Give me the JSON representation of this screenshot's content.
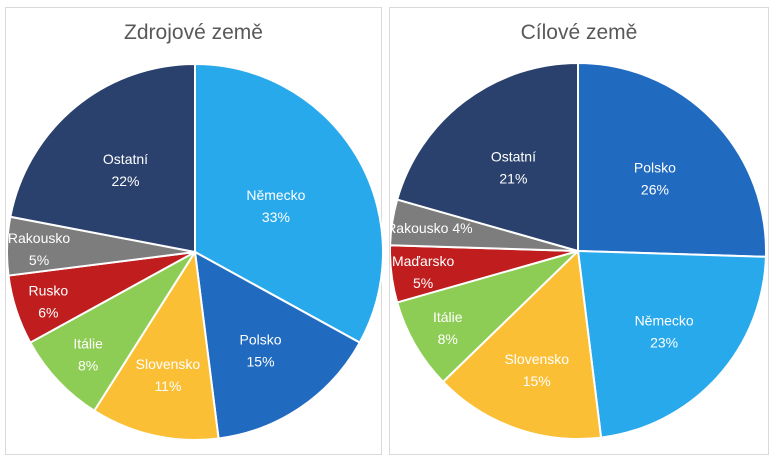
{
  "chart_data": [
    {
      "type": "pie",
      "title": "Zdrojové země",
      "start_angle_deg": 0,
      "slices": [
        {
          "label": "Německo",
          "value": 33,
          "value_text": "33%",
          "color": "#27A9EC"
        },
        {
          "label": "Polsko",
          "value": 15,
          "value_text": "15%",
          "color": "#206AC0"
        },
        {
          "label": "Slovensko",
          "value": 11,
          "value_text": "11%",
          "color": "#FBBF35"
        },
        {
          "label": "Itálie",
          "value": 8,
          "value_text": "8%",
          "color": "#8ECD55"
        },
        {
          "label": "Rusko",
          "value": 6,
          "value_text": "6%",
          "color": "#C01E1E"
        },
        {
          "label": "Rakousko",
          "value": 5,
          "value_text": "5%",
          "color": "#7D7D7D"
        },
        {
          "label": "Ostatní",
          "value": 22,
          "value_text": "22%",
          "color": "#2B416D"
        }
      ]
    },
    {
      "type": "pie",
      "title": "Cílové země",
      "start_angle_deg": 0,
      "slices": [
        {
          "label": "Polsko",
          "value": 26,
          "value_text": "26%",
          "color": "#206AC0"
        },
        {
          "label": "Německo",
          "value": 23,
          "value_text": "23%",
          "color": "#27A9EC"
        },
        {
          "label": "Slovensko",
          "value": 15,
          "value_text": "15%",
          "color": "#FBBF35"
        },
        {
          "label": "Itálie",
          "value": 8,
          "value_text": "8%",
          "color": "#8ECD55"
        },
        {
          "label": "Maďarsko",
          "value": 5,
          "value_text": "5%",
          "color": "#C01E1E"
        },
        {
          "label": "Rakousko",
          "value": 4,
          "value_text": "4%",
          "color": "#7D7D7D"
        },
        {
          "label": "Ostatní",
          "value": 21,
          "value_text": "21%",
          "color": "#2B416D"
        }
      ]
    }
  ]
}
